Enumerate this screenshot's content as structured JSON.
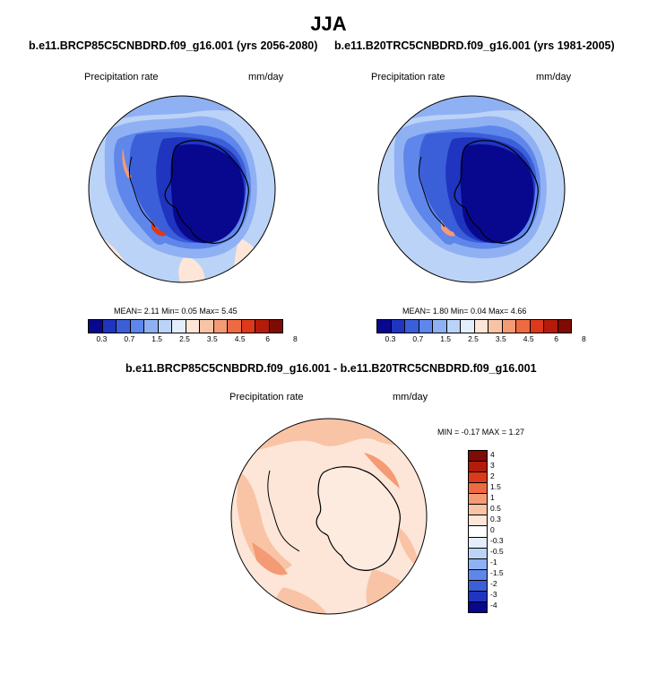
{
  "title": "JJA",
  "panels": [
    {
      "case_title": "b.e11.BRCP85C5CNBDRD.f09_g16.001 (yrs 2056-2080)",
      "variable": "Precipitation rate",
      "units": "mm/day",
      "stats": {
        "mean": "2.11",
        "min": "0.05",
        "max": "5.45"
      },
      "stats_text": "MEAN=  2.11  Min=  0.05  Max=  5.45"
    },
    {
      "case_title": "b.e11.B20TRC5CNBDRD.f09_g16.001 (yrs 1981-2005)",
      "variable": "Precipitation rate",
      "units": "mm/day",
      "stats": {
        "mean": "1.80",
        "min": "0.04",
        "max": "4.66"
      },
      "stats_text": "MEAN=  1.80  Min=  0.04  Max=  4.66"
    }
  ],
  "diff_panel": {
    "title": "b.e11.BRCP85C5CNBDRD.f09_g16.001 - b.e11.B20TRC5CNBDRD.f09_g16.001",
    "variable": "Precipitation rate",
    "units": "mm/day",
    "stats": {
      "min": "-0.17",
      "max": "1.27"
    },
    "stats_text": "MIN =  -0.17 MAX =   1.27"
  },
  "colorbars": {
    "precip": {
      "labels": [
        "0.3",
        "0.7",
        "1.5",
        "2.5",
        "3.5",
        "4.5",
        "6",
        "8"
      ],
      "colors": [
        "#08088f",
        "#1f35c0",
        "#3b5fd8",
        "#5f86ea",
        "#8fb1f3",
        "#bcd3f8",
        "#e3edfc",
        "#fde6d8",
        "#f9c3a6",
        "#f49a74",
        "#ee6a42",
        "#dd3a1c",
        "#b41b0a",
        "#7e0b04"
      ]
    },
    "diff": {
      "labels": [
        "4",
        "3",
        "2",
        "1.5",
        "1",
        "0.5",
        "0.3",
        "0",
        "-0.3",
        "-0.5",
        "-1",
        "-1.5",
        "-2",
        "-3",
        "-4"
      ],
      "colors": [
        "#7e0b04",
        "#b41b0a",
        "#dd3a1c",
        "#ee6a42",
        "#f49a74",
        "#f9c3a6",
        "#fde6d8",
        "#ffffff",
        "#e3edfc",
        "#bcd3f8",
        "#8fb1f3",
        "#5f86ea",
        "#3b5fd8",
        "#1f35c0",
        "#08088f"
      ]
    }
  },
  "chart_data": [
    {
      "type": "heatmap",
      "title": "b.e11.BRCP85C5CNBDRD.f09_g16.001 (yrs 2056-2080)",
      "projection": "south polar stereographic",
      "variable": "Precipitation rate",
      "units": "mm/day",
      "mean": 2.11,
      "min": 0.05,
      "max": 5.45,
      "contour_levels": [
        0.3,
        0.7,
        1.5,
        2.5,
        3.5,
        4.5,
        6,
        8
      ]
    },
    {
      "type": "heatmap",
      "title": "b.e11.B20TRC5CNBDRD.f09_g16.001 (yrs 1981-2005)",
      "projection": "south polar stereographic",
      "variable": "Precipitation rate",
      "units": "mm/day",
      "mean": 1.8,
      "min": 0.04,
      "max": 4.66,
      "contour_levels": [
        0.3,
        0.7,
        1.5,
        2.5,
        3.5,
        4.5,
        6,
        8
      ]
    },
    {
      "type": "heatmap",
      "title": "b.e11.BRCP85C5CNBDRD.f09_g16.001 - b.e11.B20TRC5CNBDRD.f09_g16.001",
      "projection": "south polar stereographic",
      "variable": "Precipitation rate",
      "units": "mm/day",
      "min": -0.17,
      "max": 1.27,
      "contour_levels": [
        -4,
        -3,
        -2,
        -1.5,
        -1,
        -0.5,
        -0.3,
        0,
        0.3,
        0.5,
        1,
        1.5,
        2,
        3,
        4
      ]
    }
  ]
}
